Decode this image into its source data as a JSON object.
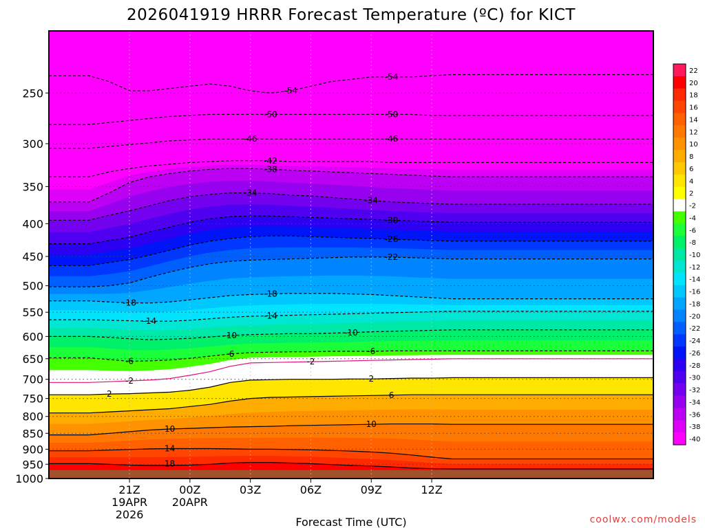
{
  "chart_data": {
    "type": "heatmap",
    "title": "2026041919 HRRR Forecast Temperature (ºC) for KICT",
    "xlabel": "Forecast Time (UTC)",
    "ylabel": "",
    "credit": "coolwx.com/models",
    "y_axis": {
      "type": "log-pressure",
      "units": "hPa",
      "range": [
        1000,
        200
      ],
      "ticks": [
        1000,
        950,
        900,
        850,
        800,
        750,
        700,
        650,
        600,
        550,
        500,
        450,
        400,
        350,
        300,
        250
      ]
    },
    "x_axis": {
      "range_hours": [
        -2,
        28
      ],
      "ticks": [
        {
          "hour": 2,
          "lines": [
            "21Z",
            "19APR",
            "2026"
          ]
        },
        {
          "hour": 5,
          "lines": [
            "00Z",
            "20APR"
          ]
        },
        {
          "hour": 8,
          "lines": [
            "03Z"
          ]
        },
        {
          "hour": 11,
          "lines": [
            "06Z"
          ]
        },
        {
          "hour": 14,
          "lines": [
            "09Z"
          ]
        },
        {
          "hour": 17,
          "lines": [
            "12Z"
          ]
        }
      ]
    },
    "x_hours": [
      0,
      1,
      2,
      3,
      4,
      5,
      6,
      7,
      8,
      9,
      10,
      11,
      12,
      13,
      14,
      15,
      16,
      17,
      18
    ],
    "ground_pressure": 970,
    "isotherms": [
      {
        "value": 18,
        "p": [
          948,
          950,
          953,
          954,
          954,
          953,
          950,
          946,
          944,
          944,
          946,
          948,
          951,
          954,
          956,
          959,
          963,
          965,
          966
        ]
      },
      {
        "value": 14,
        "p": [
          905,
          903,
          901,
          899,
          898,
          898,
          898,
          899,
          900,
          900,
          901,
          902,
          904,
          906,
          909,
          913,
          919,
          926,
          932
        ]
      },
      {
        "value": 10,
        "p": [
          855,
          850,
          845,
          840,
          837,
          835,
          833,
          831,
          830,
          829,
          827,
          826,
          825,
          824,
          823,
          822,
          822,
          822,
          823
        ]
      },
      {
        "value": 6,
        "p": [
          790,
          787,
          784,
          781,
          778,
          772,
          766,
          757,
          750,
          747,
          746,
          745,
          744,
          743,
          742,
          741,
          740,
          740,
          740
        ]
      },
      {
        "value": 2,
        "p": [
          740,
          738,
          737,
          735,
          733,
          728,
          720,
          708,
          702,
          701,
          700,
          700,
          700,
          699,
          699,
          698,
          697,
          697,
          696
        ]
      },
      {
        "value": -2,
        "p": [
          708,
          706,
          704,
          702,
          698,
          690,
          681,
          668,
          660,
          659,
          658,
          657,
          656,
          655,
          654,
          653,
          652,
          651,
          650
        ]
      },
      {
        "value": -6,
        "p": [
          648,
          652,
          656,
          655,
          653,
          649,
          644,
          639,
          636,
          635,
          634,
          634,
          633,
          633,
          633,
          632,
          632,
          632,
          632
        ]
      },
      {
        "value": -10,
        "p": [
          600,
          602,
          605,
          607,
          606,
          604,
          601,
          598,
          596,
          595,
          594,
          594,
          593,
          592,
          590,
          589,
          588,
          587,
          586
        ]
      },
      {
        "value": -14,
        "p": [
          565,
          566,
          567,
          568,
          568,
          566,
          563,
          560,
          558,
          557,
          556,
          555,
          554,
          553,
          552,
          551,
          550,
          549,
          548
        ]
      },
      {
        "value": -18,
        "p": [
          528,
          530,
          532,
          532,
          530,
          526,
          522,
          518,
          516,
          515,
          514,
          514,
          514,
          515,
          516,
          518,
          520,
          522,
          524
        ]
      },
      {
        "value": -22,
        "p": [
          502,
          500,
          495,
          485,
          476,
          468,
          462,
          458,
          456,
          455,
          454,
          453,
          452,
          451,
          451,
          451,
          452,
          453,
          454
        ]
      },
      {
        "value": -26,
        "p": [
          465,
          460,
          455,
          448,
          440,
          432,
          426,
          422,
          419,
          418,
          418,
          419,
          420,
          421,
          422,
          423,
          424,
          425,
          426
        ]
      },
      {
        "value": -30,
        "p": [
          430,
          425,
          420,
          412,
          405,
          398,
          393,
          390,
          389,
          389,
          390,
          391,
          392,
          393,
          394,
          395,
          396,
          397,
          398
        ]
      },
      {
        "value": -34,
        "p": [
          395,
          388,
          382,
          375,
          368,
          363,
          360,
          358,
          358,
          359,
          361,
          362,
          364,
          366,
          368,
          370,
          371,
          372,
          373
        ]
      },
      {
        "value": -38,
        "p": [
          370,
          358,
          345,
          338,
          334,
          331,
          329,
          328,
          328,
          329,
          330,
          331,
          332,
          333,
          334,
          335,
          336,
          337,
          338
        ]
      },
      {
        "value": -42,
        "p": [
          338,
          332,
          328,
          325,
          323,
          321,
          320,
          319,
          319,
          319,
          320,
          320,
          320,
          320,
          320,
          321,
          321,
          321,
          321
        ]
      },
      {
        "value": -46,
        "p": [
          305,
          303,
          301,
          299,
          297,
          296,
          295,
          295,
          295,
          295,
          295,
          295,
          295,
          295,
          295,
          295,
          295,
          295,
          295
        ]
      },
      {
        "value": -50,
        "p": [
          280,
          278,
          276,
          274,
          272,
          271,
          270,
          270,
          270,
          270,
          270,
          270,
          270,
          270,
          270,
          270,
          270,
          271,
          271
        ]
      },
      {
        "value": -54,
        "p": [
          235,
          240,
          248,
          248,
          246,
          244,
          242,
          244,
          248,
          250,
          248,
          244,
          240,
          238,
          236,
          236,
          236,
          235,
          234
        ]
      }
    ],
    "isotherm_labels": [
      {
        "value": "18",
        "hour": 4,
        "p": 948
      },
      {
        "value": "14",
        "hour": 4,
        "p": 898
      },
      {
        "value": "10",
        "hour": 4,
        "p": 837
      },
      {
        "value": "10",
        "hour": 14,
        "p": 823
      },
      {
        "value": "6",
        "hour": 15,
        "p": 741
      },
      {
        "value": "2",
        "hour": 1,
        "p": 738
      },
      {
        "value": "2",
        "hour": 14,
        "p": 699
      },
      {
        "value": "-2",
        "hour": 2,
        "p": 704
      },
      {
        "value": "-2",
        "hour": 11,
        "p": 657
      },
      {
        "value": "-6",
        "hour": 2,
        "p": 656
      },
      {
        "value": "-6",
        "hour": 7,
        "p": 639
      },
      {
        "value": "-6",
        "hour": 14,
        "p": 633
      },
      {
        "value": "-10",
        "hour": 7,
        "p": 598
      },
      {
        "value": "-10",
        "hour": 13,
        "p": 592
      },
      {
        "value": "-14",
        "hour": 3,
        "p": 568
      },
      {
        "value": "-14",
        "hour": 9,
        "p": 557
      },
      {
        "value": "-18",
        "hour": 2,
        "p": 532
      },
      {
        "value": "-18",
        "hour": 9,
        "p": 515
      },
      {
        "value": "-22",
        "hour": 15,
        "p": 451
      },
      {
        "value": "-26",
        "hour": 15,
        "p": 423
      },
      {
        "value": "-30",
        "hour": 15,
        "p": 395
      },
      {
        "value": "-34",
        "hour": 8,
        "p": 358
      },
      {
        "value": "-34",
        "hour": 14,
        "p": 368
      },
      {
        "value": "-38",
        "hour": 9,
        "p": 329
      },
      {
        "value": "-42",
        "hour": 9,
        "p": 319
      },
      {
        "value": "-46",
        "hour": 8,
        "p": 295
      },
      {
        "value": "-46",
        "hour": 15,
        "p": 295
      },
      {
        "value": "-50",
        "hour": 9,
        "p": 270
      },
      {
        "value": "-50",
        "hour": 15,
        "p": 270
      },
      {
        "value": "-54",
        "hour": 10,
        "p": 248
      },
      {
        "value": "-54",
        "hour": 15,
        "p": 236
      }
    ],
    "colorbar": [
      {
        "label": "22",
        "color": "#ff1a5e"
      },
      {
        "label": "20",
        "color": "#ff0000"
      },
      {
        "label": "18",
        "color": "#ff2a00"
      },
      {
        "label": "16",
        "color": "#ff4600"
      },
      {
        "label": "14",
        "color": "#ff6000"
      },
      {
        "label": "12",
        "color": "#ff7800"
      },
      {
        "label": "10",
        "color": "#ff9200"
      },
      {
        "label": "8",
        "color": "#ffac00"
      },
      {
        "label": "6",
        "color": "#ffc800"
      },
      {
        "label": "4",
        "color": "#ffe600"
      },
      {
        "label": "2",
        "color": "#ffff00"
      },
      {
        "label": "-2",
        "color": "#ffffff"
      },
      {
        "label": "-4",
        "color": "#44ff00"
      },
      {
        "label": "-6",
        "color": "#1aff3a"
      },
      {
        "label": "-8",
        "color": "#00f06a"
      },
      {
        "label": "-10",
        "color": "#00e8a6"
      },
      {
        "label": "-12",
        "color": "#00e6d2"
      },
      {
        "label": "-14",
        "color": "#00e4ff"
      },
      {
        "label": "-16",
        "color": "#00c8ff"
      },
      {
        "label": "-18",
        "color": "#00a6ff"
      },
      {
        "label": "-20",
        "color": "#0084ff"
      },
      {
        "label": "-22",
        "color": "#0060ff"
      },
      {
        "label": "-24",
        "color": "#0038ff"
      },
      {
        "label": "-26",
        "color": "#0014f8"
      },
      {
        "label": "-28",
        "color": "#2c00f2"
      },
      {
        "label": "-30",
        "color": "#5000f0"
      },
      {
        "label": "-32",
        "color": "#7400f0"
      },
      {
        "label": "-34",
        "color": "#9800f0"
      },
      {
        "label": "-36",
        "color": "#bc00f4"
      },
      {
        "label": "-38",
        "color": "#de00f8"
      },
      {
        "label": "-40",
        "color": "#ff00ff"
      }
    ],
    "grid": true
  }
}
